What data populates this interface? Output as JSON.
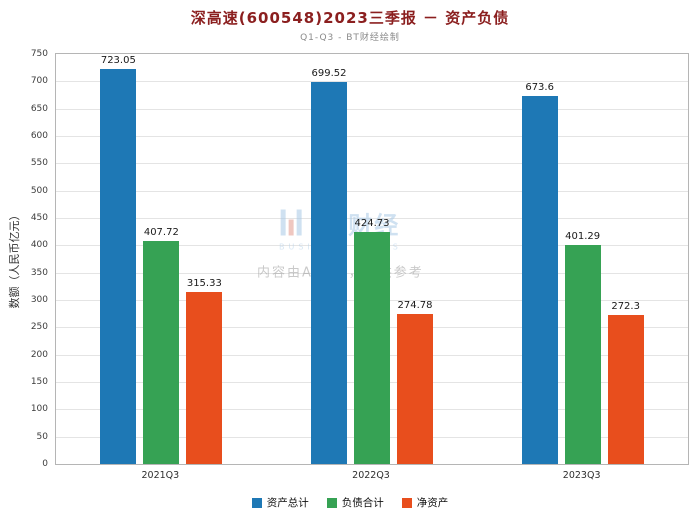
{
  "title": "深高速(600548)2023三季报 － 资产负债",
  "subtitle": "Q1-Q3 - BT财经绘制",
  "watermark": {
    "logo_text": "BT财经",
    "logo_sub": "BUSINESS TIMES",
    "disclaimer": "内容由AI生成，仅供参考"
  },
  "chart_data": {
    "type": "bar",
    "categories": [
      "2021Q3",
      "2022Q3",
      "2023Q3"
    ],
    "series": [
      {
        "name": "资产总计",
        "color": "#1e78b5",
        "values": [
          723.05,
          699.52,
          673.6
        ]
      },
      {
        "name": "负债合计",
        "color": "#36a254",
        "values": [
          407.72,
          424.73,
          401.29
        ]
      },
      {
        "name": "净资产",
        "color": "#e84e1d",
        "values": [
          315.33,
          274.78,
          272.3
        ]
      }
    ],
    "title": "深高速(600548)2023三季报 － 资产负债",
    "xlabel": "",
    "ylabel": "数额（人民币亿元）",
    "ylim": [
      0,
      750
    ],
    "ytick_step": 50,
    "grid": true,
    "legend_position": "bottom"
  }
}
